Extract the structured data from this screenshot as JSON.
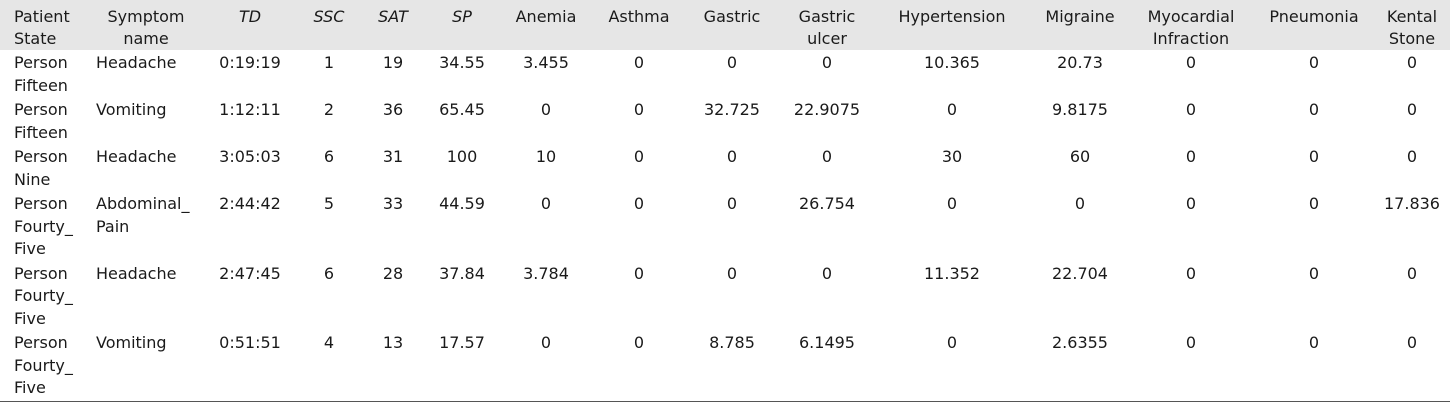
{
  "headers": [
    "Patient\nState",
    "Symptom\nname",
    "TD",
    "SSC",
    "SAT",
    "SP",
    "Anemia",
    "Asthma",
    "Gastric",
    "Gastric\nulcer",
    "Hypertension",
    "Migraine",
    "Myocardial\nInfraction",
    "Pneumonia",
    "Kental\nStone"
  ],
  "rows": [
    [
      "Person\nFifteen",
      "Headache",
      "0:19:19",
      "1",
      "19",
      "34.55",
      "3.455",
      "0",
      "0",
      "0",
      "10.365",
      "20.73",
      "0",
      "0",
      "0"
    ],
    [
      "Person\nFifteen",
      "Vomiting",
      "1:12:11",
      "2",
      "36",
      "65.45",
      "0",
      "0",
      "32.725",
      "22.9075",
      "0",
      "9.8175",
      "0",
      "0",
      "0"
    ],
    [
      "Person\nNine",
      "Headache",
      "3:05:03",
      "6",
      "31",
      "100",
      "10",
      "0",
      "0",
      "0",
      "30",
      "60",
      "0",
      "0",
      "0"
    ],
    [
      "Person\nFourty_\nFive",
      "Abdominal_\nPain",
      "2:44:42",
      "5",
      "33",
      "44.59",
      "0",
      "0",
      "0",
      "26.754",
      "0",
      "0",
      "0",
      "0",
      "17.836"
    ],
    [
      "Person\nFourty_\nFive",
      "Headache",
      "2:47:45",
      "6",
      "28",
      "37.84",
      "3.784",
      "0",
      "0",
      "0",
      "11.352",
      "22.704",
      "0",
      "0",
      "0"
    ],
    [
      "Person\nFourty_\nFive",
      "Vomiting",
      "0:51:51",
      "4",
      "13",
      "17.57",
      "0",
      "0",
      "8.785",
      "6.1495",
      "0",
      "2.6355",
      "0",
      "0",
      "0"
    ]
  ]
}
